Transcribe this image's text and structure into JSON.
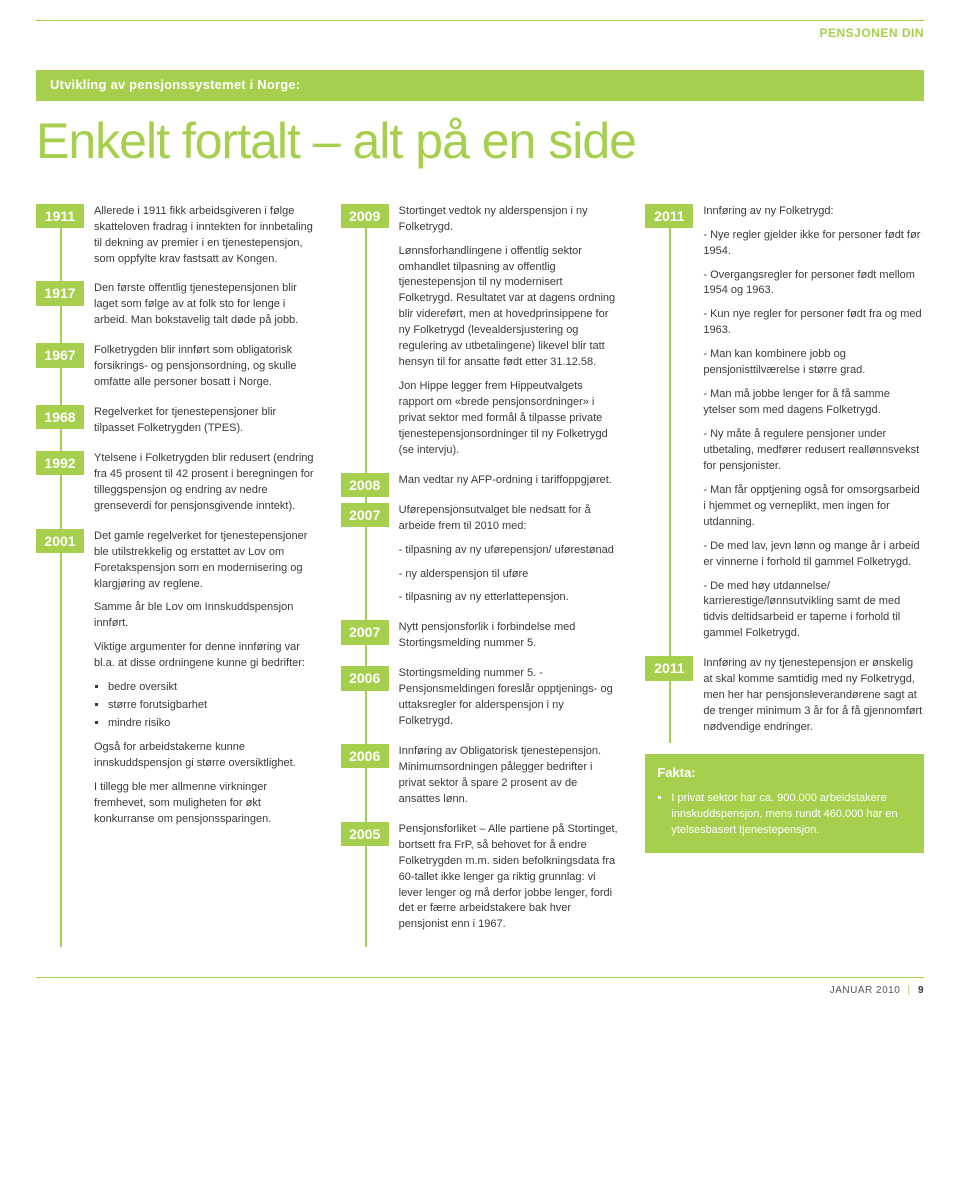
{
  "colors": {
    "green": "#a5cf4c",
    "text": "#3a3a3a",
    "white": "#ffffff"
  },
  "section_label": "PENSJONEN DIN",
  "banner": "Utvikling av pensjonssystemet i Norge:",
  "headline": "Enkelt fortalt – alt på en side",
  "col1": [
    {
      "year": "1911",
      "text": "Allerede i 1911 fikk arbeids­giveren i følge skatteloven fradrag i inntekten for innbetaling til dekning av premier i en tjeneste­pensjon, som oppfylte krav fastsatt av Kongen."
    },
    {
      "year": "1917",
      "text": "Den første offentlig tjeneste­pensjonen blir laget som følge av at folk sto for lenge i arbeid. Man bokstavelig talt døde på jobb."
    },
    {
      "year": "1967",
      "text": "Folketrygden blir innført som obligatorisk forsikrings- og pensjonsordning, og skulle omfatte alle personer bosatt i Norge."
    },
    {
      "year": "1968",
      "text": "Regelverket for tjenestepensjoner blir tilpasset Folketrygden (TPES)."
    },
    {
      "year": "1992",
      "text": "Ytelsene i Folketrygden blir redusert (endring fra 45 prosent til 42 prosent i beregningen for tilleggspensjon og endring av nedre grenseverdi for pensjons­givende inntekt)."
    },
    {
      "year": "2001",
      "text": "Det gamle regelverket for tjenestepensjoner ble utilstrekkelig og erstattet av Lov om Foretaks­pensjon som en modernisering og klargjøring av reglene.",
      "extra": [
        {
          "p": "Samme år ble Lov om Innskudds­pensjon innført."
        },
        {
          "p": "Viktige argumenter for denne innføring var bl.a. at disse ordningene kunne gi bedrifter:"
        },
        {
          "ul": [
            "bedre oversikt",
            "større forutsigbarhet",
            "mindre risiko"
          ]
        },
        {
          "p": "Også for arbeidstakerne kunne innskuddspensjon gi større oversiktlighet."
        },
        {
          "p": "I tillegg ble mer allmenne virkninger fremhevet, som muligheten for økt konkurranse om pensjonssparingen."
        }
      ]
    }
  ],
  "col2": [
    {
      "year": "2009",
      "text": "Stortinget vedtok ny alderspensjon i ny Folketrygd.",
      "extra": [
        {
          "p": "Lønnsforhandlingene i offentlig sektor omhandlet tilpasning av offentlig tjenestepensjon til ny modernisert Folketrygd. Resultatet var at dagens ordning blir videre­ført, men at hovedprinsippene for ny Folketrygd (levealdersjustering og regulering av utbetalingene) likevel blir tatt hensyn til for ansatte født etter 31.12.58."
        },
        {
          "p": "Jon Hippe legger frem Hippe­utvalgets rapport om «brede pensjonsordninger» i privat sektor med formål å tilpasse private tjenestepensjonsordninger til ny Folketrygd (se intervju)."
        }
      ]
    },
    {
      "year": "2008",
      "text": "Man vedtar ny AFP-ordning i tariffoppgjøret."
    },
    {
      "year": "2007",
      "text": "Uførepensjonsutvalget ble nedsatt for å arbeide frem til 2010 med:",
      "extra": [
        {
          "p": "- tilpasning av ny uførepensjon/ uførestønad"
        },
        {
          "p": "- ny alderspensjon til uføre"
        },
        {
          "p": "- tilpasning av ny etterlatte­pensjon."
        }
      ]
    },
    {
      "year": "2007",
      "text": "Nytt pensjonsforlik i forbindelse med Stortingsmelding nummer 5."
    },
    {
      "year": "2006",
      "text": "Stortingsmelding nummer 5. - Pensjonsmeldingen foreslår opptjenings- og uttaksregler for alderspensjon i ny Folketrygd."
    },
    {
      "year": "2006",
      "text": "Innføring av Obligatorisk tjeneste­pensjon. Minimumsordningen pålegger bedrifter i privat sektor å spare 2 prosent av de ansattes lønn."
    },
    {
      "year": "2005",
      "text": "Pensjonsforliket – Alle partiene på Stortinget, bortsett fra FrP, så behovet for å endre Folketrygden m.m. siden befolkningsdata fra 60-tallet ikke lenger ga riktig grunnlag: vi lever lenger og må derfor jobbe lenger, fordi det er færre arbeidstakere bak hver pensjonist enn i 1967."
    }
  ],
  "col3": [
    {
      "year": "2011",
      "text": "Innføring av ny Folketrygd:",
      "extra": [
        {
          "p": "- Nye regler gjelder ikke for personer født før 1954."
        },
        {
          "p": "- Overgangsregler for personer født mellom 1954 og 1963."
        },
        {
          "p": "- Kun nye regler for personer født fra og med 1963."
        },
        {
          "p": "- Man kan kombinere jobb og pensjonisttilværelse i større grad."
        },
        {
          "p": "- Man må jobbe lenger for å få samme ytelser som med dagens Folketrygd."
        },
        {
          "p": "- Ny måte å regulere pensjoner under utbetaling, medfører redusert reallønnsvekst for pensjonister."
        },
        {
          "p": "- Man får opptjening også for omsorgsarbeid i hjemmet og verneplikt, men ingen for utdanning."
        },
        {
          "p": "- De med lav, jevn lønn og mange år i arbeid er vinnerne i forhold til gammel Folketrygd."
        },
        {
          "p": "- De med høy utdannelse/ karrierestige/lønnsutvikling samt de med tidvis deltids­arbeid er taperne i forhold til gammel Folketrygd."
        }
      ]
    },
    {
      "year": "2011",
      "text": "Innføring av ny tjenestepensjon er ønskelig at skal komme samtidig med ny Folketrygd, men her har pensjonsleverandørene sagt at de trenger minimum 3 år for å få gjennomført nødvendige endringer."
    }
  ],
  "fakta": {
    "title": "Fakta:",
    "items": [
      "I privat sektor har ca. 900.000 arbeids­takere innskuddspensjon, mens rundt 460.000 har en ytelsesbasert tjeneste­pensjon."
    ]
  },
  "footer": {
    "date": "JANUAR 2010",
    "page": "9"
  }
}
